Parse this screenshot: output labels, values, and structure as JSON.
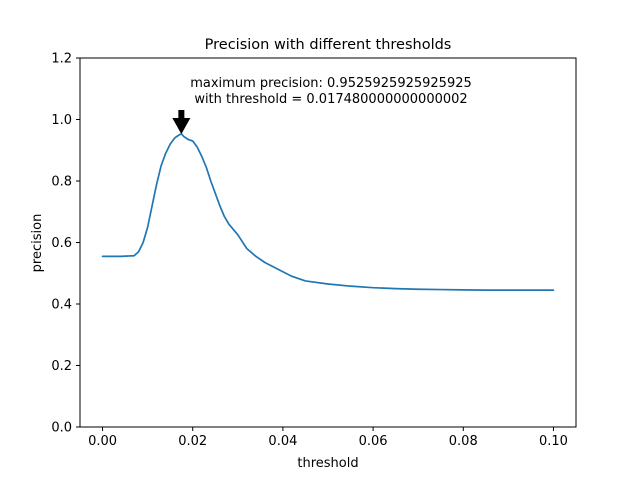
{
  "chart_data": {
    "type": "line",
    "title": "Precision with different thresholds",
    "xlabel": "threshold",
    "ylabel": "precision",
    "xlim": [
      -0.005,
      0.105
    ],
    "ylim": [
      0.0,
      1.2
    ],
    "xticks": [
      0.0,
      0.02,
      0.04,
      0.06,
      0.08,
      0.1
    ],
    "xtick_labels": [
      "0.00",
      "0.02",
      "0.04",
      "0.06",
      "0.08",
      "0.10"
    ],
    "yticks": [
      0.0,
      0.2,
      0.4,
      0.6,
      0.8,
      1.0,
      1.2
    ],
    "ytick_labels": [
      "0.0",
      "0.2",
      "0.4",
      "0.6",
      "0.8",
      "1.0",
      "1.2"
    ],
    "grid": false,
    "series": [
      {
        "color": "#1f77b4",
        "x": [
          0.0,
          0.004,
          0.007,
          0.008,
          0.009,
          0.01,
          0.011,
          0.012,
          0.013,
          0.014,
          0.015,
          0.016,
          0.017,
          0.0175,
          0.018,
          0.019,
          0.02,
          0.021,
          0.022,
          0.023,
          0.024,
          0.025,
          0.026,
          0.027,
          0.028,
          0.03,
          0.032,
          0.034,
          0.036,
          0.038,
          0.04,
          0.042,
          0.045,
          0.05,
          0.055,
          0.06,
          0.065,
          0.07,
          0.075,
          0.08,
          0.085,
          0.09,
          0.095,
          0.1
        ],
        "y": [
          0.555,
          0.555,
          0.557,
          0.57,
          0.6,
          0.65,
          0.72,
          0.79,
          0.85,
          0.89,
          0.92,
          0.94,
          0.95,
          0.953,
          0.945,
          0.935,
          0.93,
          0.91,
          0.88,
          0.845,
          0.8,
          0.76,
          0.72,
          0.685,
          0.66,
          0.625,
          0.58,
          0.555,
          0.535,
          0.52,
          0.505,
          0.49,
          0.475,
          0.465,
          0.458,
          0.453,
          0.45,
          0.448,
          0.447,
          0.446,
          0.445,
          0.445,
          0.445,
          0.445
        ]
      }
    ],
    "annotation": {
      "line1": "maximum precision: 0.9525925925925925",
      "line2": "with threshold = 0.017480000000000002",
      "target_x": 0.01748,
      "target_y": 0.9525925925925925,
      "arrow_color": "#000000"
    }
  }
}
